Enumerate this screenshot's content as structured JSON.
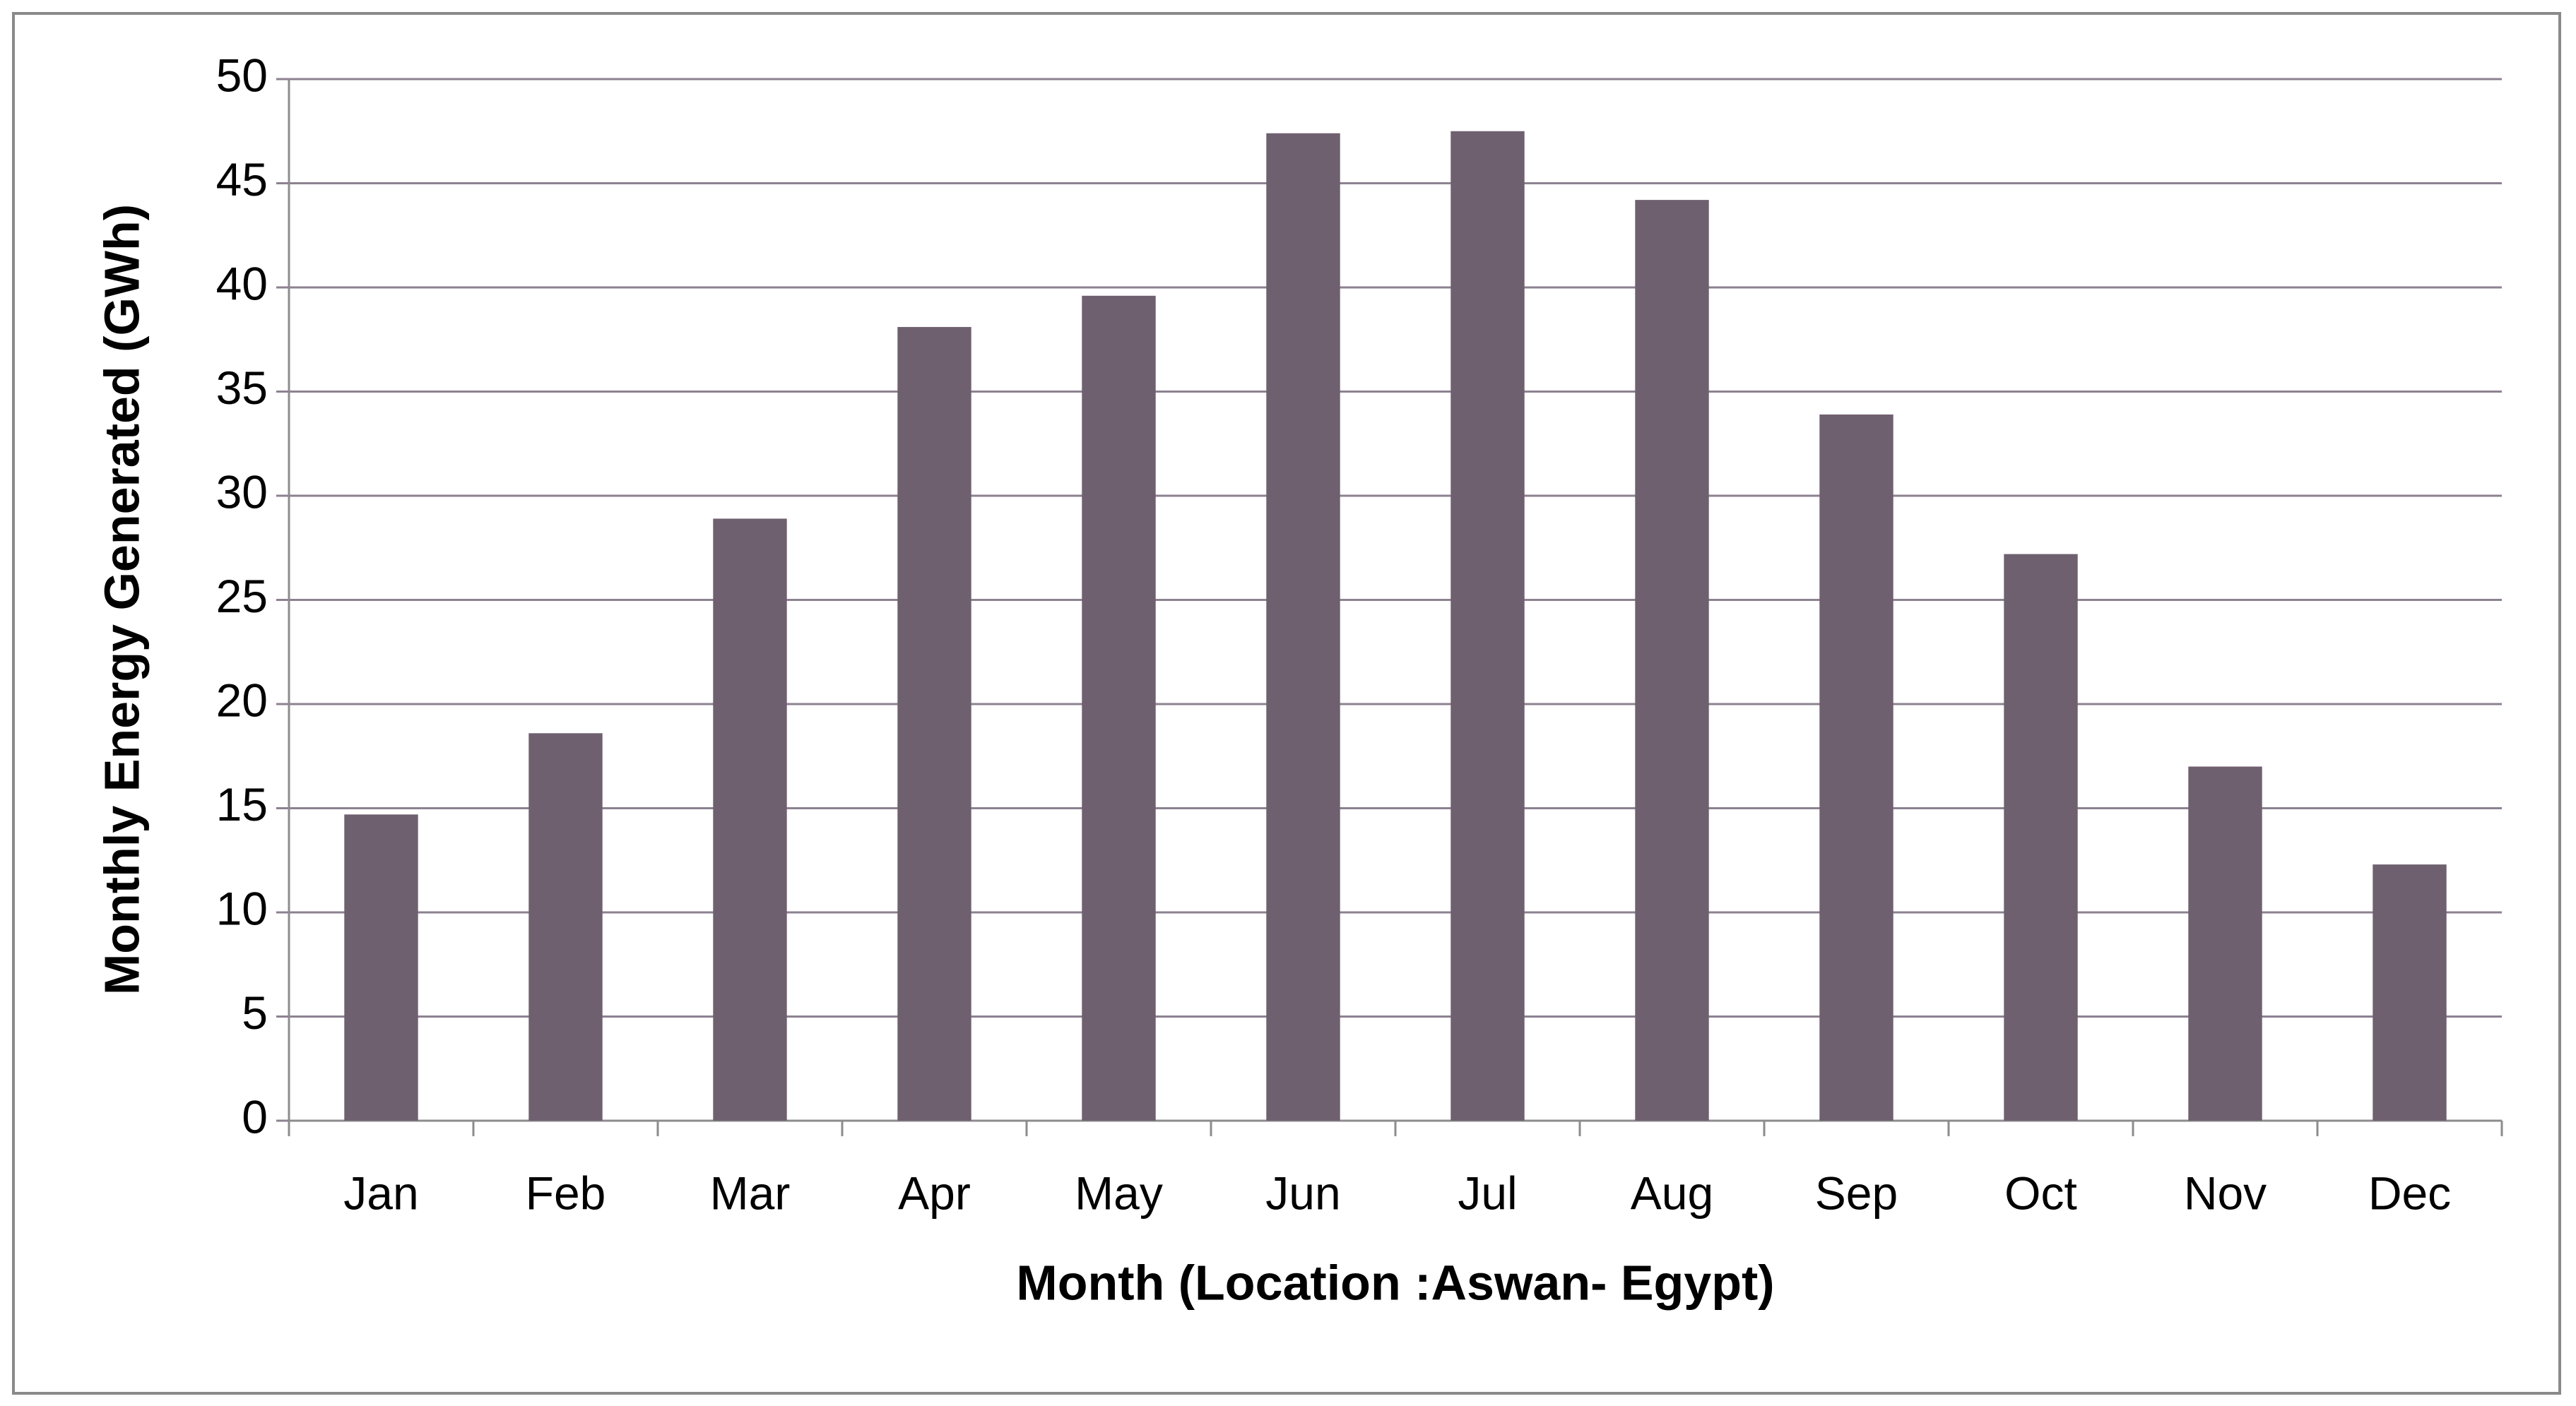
{
  "chart_data": {
    "type": "bar",
    "x_label": "Month (Location :Aswan- Egypt)",
    "y_label": "Monthly Energy Generated (GWh)",
    "categories": [
      "Jan",
      "Feb",
      "Mar",
      "Apr",
      "May",
      "Jun",
      "Jul",
      "Aug",
      "Sep",
      "Oct",
      "Nov",
      "Dec"
    ],
    "values": [
      14.7,
      18.6,
      28.9,
      38.1,
      39.6,
      47.4,
      47.5,
      44.2,
      33.9,
      27.2,
      17.0,
      12.3
    ],
    "color": "#6f6070",
    "ylim": [
      0,
      50
    ],
    "yticks": [
      0,
      5,
      10,
      15,
      20,
      25,
      30,
      35,
      40,
      45,
      50
    ],
    "grid": true
  }
}
